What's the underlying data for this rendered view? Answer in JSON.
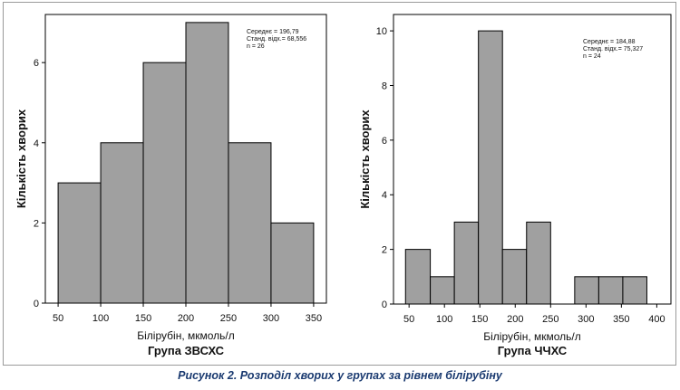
{
  "caption": "Рисунок 2. Розподіл хворих у групах за рівнем білірубіну",
  "colors": {
    "bar_fill": "#a0a0a0",
    "bar_stroke": "#000000",
    "caption": "#1a3a70"
  },
  "chart_data": [
    {
      "type": "bar",
      "title": "Група ЗВСХС",
      "xlabel": "Білірубін, мкмоль/л",
      "ylabel": "Кількість хворих",
      "xlim": [
        35,
        365
      ],
      "ylim": [
        0,
        7.2
      ],
      "xticks": [
        50,
        100,
        150,
        200,
        250,
        300,
        350
      ],
      "yticks": [
        0,
        2,
        4,
        6
      ],
      "bins": [
        {
          "start": 50,
          "end": 100,
          "count": 3
        },
        {
          "start": 100,
          "end": 150,
          "count": 4
        },
        {
          "start": 150,
          "end": 200,
          "count": 6
        },
        {
          "start": 200,
          "end": 250,
          "count": 7
        },
        {
          "start": 250,
          "end": 300,
          "count": 4
        },
        {
          "start": 300,
          "end": 350,
          "count": 2
        }
      ],
      "stats": [
        "Середнє = 196,79",
        "Станд. відх.= 68,556",
        "n = 26"
      ],
      "grid": false
    },
    {
      "type": "bar",
      "title": "Група ЧЧХС",
      "xlabel": "Білірубін, мкмоль/л",
      "ylabel": "Кількість хворих",
      "xlim": [
        28,
        420
      ],
      "ylim": [
        0,
        10.6
      ],
      "xticks": [
        50,
        100,
        150,
        200,
        250,
        300,
        350,
        400
      ],
      "yticks": [
        0,
        2,
        4,
        6,
        8,
        10
      ],
      "bins": [
        {
          "start": 45,
          "end": 80,
          "count": 2
        },
        {
          "start": 80,
          "end": 114,
          "count": 1
        },
        {
          "start": 114,
          "end": 148,
          "count": 3
        },
        {
          "start": 148,
          "end": 182,
          "count": 10
        },
        {
          "start": 182,
          "end": 216,
          "count": 2
        },
        {
          "start": 216,
          "end": 250,
          "count": 3
        },
        {
          "start": 250,
          "end": 284,
          "count": 0
        },
        {
          "start": 284,
          "end": 318,
          "count": 1
        },
        {
          "start": 318,
          "end": 352,
          "count": 1
        },
        {
          "start": 352,
          "end": 386,
          "count": 1
        }
      ],
      "stats": [
        "Середнє = 184,88",
        "Станд. відх.= 75,327",
        "n = 24"
      ],
      "grid": false
    }
  ]
}
